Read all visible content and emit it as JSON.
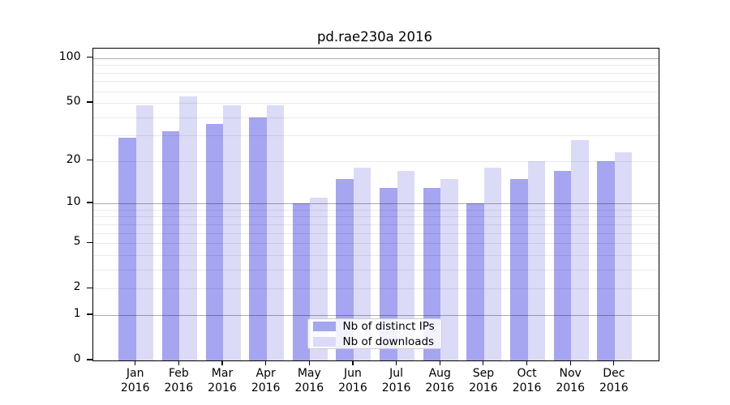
{
  "chart_data": {
    "type": "bar",
    "title": "pd.rae230a 2016",
    "categories": [
      "Jan",
      "Feb",
      "Mar",
      "Apr",
      "May",
      "Jun",
      "Jul",
      "Aug",
      "Sep",
      "Oct",
      "Nov",
      "Dec"
    ],
    "x_tick_second_line": "2016",
    "series": [
      {
        "name": "Nb of distinct IPs",
        "color": "#a5a5f2",
        "values": [
          29,
          32,
          36,
          40,
          10,
          15,
          13,
          13,
          10,
          15,
          17,
          20
        ]
      },
      {
        "name": "Nb of downloads",
        "color": "#dbdbf8",
        "values": [
          48,
          55,
          48,
          48,
          11,
          18,
          17,
          15,
          18,
          20,
          28,
          23
        ]
      }
    ],
    "xlabel": "",
    "ylabel": "",
    "yscale": "log1p",
    "ylim": [
      0,
      116
    ],
    "yticks": [
      0,
      1,
      2,
      5,
      10,
      20,
      50,
      100
    ],
    "gridlines": {
      "major": [
        1,
        10,
        100
      ],
      "minor": [
        2,
        3,
        4,
        5,
        6,
        7,
        8,
        9,
        20,
        30,
        40,
        50,
        60,
        70,
        80,
        90
      ]
    },
    "grid": true,
    "legend_position": "bottom-center",
    "colors": {
      "axis": "#000000",
      "grid_major": "rgba(0,0,0,0.32)",
      "grid_minor": "rgba(0,0,0,0.085)",
      "background": "#ffffff"
    }
  }
}
